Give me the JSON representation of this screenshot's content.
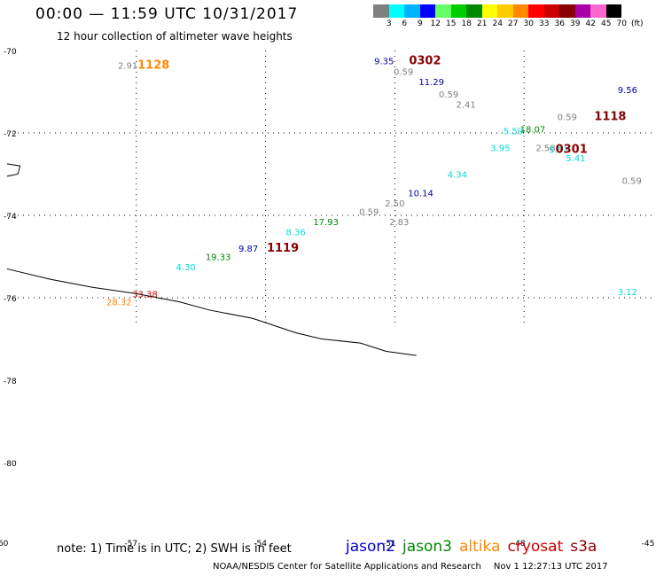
{
  "header": {
    "title": "00:00 — 11:59 UTC 10/31/2017",
    "subtitle": "12 hour collection of altimeter wave heights"
  },
  "scale": {
    "unit": "(ft)",
    "steps": [
      {
        "label": "3",
        "color": "#808080"
      },
      {
        "label": "6",
        "color": "#00ffff"
      },
      {
        "label": "9",
        "color": "#00b4ff"
      },
      {
        "label": "12",
        "color": "#0000ff"
      },
      {
        "label": "15",
        "color": "#66ff66"
      },
      {
        "label": "18",
        "color": "#00cc00"
      },
      {
        "label": "21",
        "color": "#008800"
      },
      {
        "label": "24",
        "color": "#ffff00"
      },
      {
        "label": "27",
        "color": "#ffcc00"
      },
      {
        "label": "30",
        "color": "#ff8800"
      },
      {
        "label": "33",
        "color": "#ff0000"
      },
      {
        "label": "36",
        "color": "#cc0000"
      },
      {
        "label": "39",
        "color": "#880000"
      },
      {
        "label": "42",
        "color": "#aa00aa"
      },
      {
        "label": "45",
        "color": "#ff66cc"
      },
      {
        "label": "70",
        "color": "#000000"
      }
    ]
  },
  "axes": {
    "lat_labels": [
      {
        "text": "-70",
        "lat": -70
      },
      {
        "text": "-72",
        "lat": -72
      },
      {
        "text": "-74",
        "lat": -74
      },
      {
        "text": "-76",
        "lat": -76
      },
      {
        "text": "-78",
        "lat": -78
      },
      {
        "text": "-80",
        "lat": -80
      }
    ],
    "lon_labels": [
      {
        "text": "-60",
        "lon": -60
      },
      {
        "text": "-57",
        "lon": -57
      },
      {
        "text": "-54",
        "lon": -54
      },
      {
        "text": "-51",
        "lon": -51
      },
      {
        "text": "-48",
        "lon": -48
      },
      {
        "text": "-45",
        "lon": -45
      }
    ],
    "grid_lons": [
      -57,
      -54,
      -51,
      -48
    ],
    "grid_lats": [
      -72,
      -74,
      -76
    ]
  },
  "observations": [
    {
      "text": "2.91",
      "lon": -57.2,
      "lat": -70.35,
      "color": "#808080"
    },
    {
      "text": "1128",
      "lon": -56.6,
      "lat": -70.35,
      "color": "#ff8800",
      "kind": "time"
    },
    {
      "text": "9.35",
      "lon": -51.25,
      "lat": -70.25,
      "color": "#0000aa"
    },
    {
      "text": "0302",
      "lon": -50.3,
      "lat": -70.25,
      "color": "#880000",
      "kind": "time"
    },
    {
      "text": "0.59",
      "lon": -50.8,
      "lat": -70.5,
      "color": "#808080"
    },
    {
      "text": "11.29",
      "lon": -50.15,
      "lat": -70.75,
      "color": "#0000aa"
    },
    {
      "text": "0.59",
      "lon": -49.75,
      "lat": -71.05,
      "color": "#808080"
    },
    {
      "text": "2.41",
      "lon": -49.35,
      "lat": -71.3,
      "color": "#808080"
    },
    {
      "text": "9.56",
      "lon": -45.6,
      "lat": -70.95,
      "color": "#0000aa"
    },
    {
      "text": "0.59",
      "lon": -47.0,
      "lat": -71.6,
      "color": "#808080"
    },
    {
      "text": "1118",
      "lon": -46.0,
      "lat": -71.6,
      "color": "#880000",
      "kind": "time"
    },
    {
      "text": "5.59",
      "lon": -48.25,
      "lat": -71.95,
      "color": "#00dddd"
    },
    {
      "text": "18.07",
      "lon": -47.8,
      "lat": -71.9,
      "color": "#008800"
    },
    {
      "text": "3.95",
      "lon": -48.55,
      "lat": -72.35,
      "color": "#00dddd"
    },
    {
      "text": "2.58",
      "lon": -47.5,
      "lat": -72.35,
      "color": "#808080"
    },
    {
      "text": "5.53",
      "lon": -47.2,
      "lat": -72.4,
      "color": "#00dddd"
    },
    {
      "text": "0301",
      "lon": -46.9,
      "lat": -72.4,
      "color": "#880000",
      "kind": "time"
    },
    {
      "text": "5.41",
      "lon": -46.8,
      "lat": -72.6,
      "color": "#00dddd"
    },
    {
      "text": "0.59",
      "lon": -45.5,
      "lat": -73.15,
      "color": "#808080"
    },
    {
      "text": "4.34",
      "lon": -49.55,
      "lat": -73.0,
      "color": "#00dddd"
    },
    {
      "text": "10.14",
      "lon": -50.4,
      "lat": -73.45,
      "color": "#0000aa"
    },
    {
      "text": "2.50",
      "lon": -51.0,
      "lat": -73.7,
      "color": "#808080"
    },
    {
      "text": "0.59",
      "lon": -51.6,
      "lat": -73.9,
      "color": "#808080"
    },
    {
      "text": "17.93",
      "lon": -52.6,
      "lat": -74.15,
      "color": "#008800"
    },
    {
      "text": "2.83",
      "lon": -50.9,
      "lat": -74.15,
      "color": "#808080"
    },
    {
      "text": "8.36",
      "lon": -53.3,
      "lat": -74.4,
      "color": "#00dddd"
    },
    {
      "text": "9.87",
      "lon": -54.4,
      "lat": -74.8,
      "color": "#0000aa"
    },
    {
      "text": "1119",
      "lon": -53.6,
      "lat": -74.8,
      "color": "#880000",
      "kind": "time"
    },
    {
      "text": "19.33",
      "lon": -55.1,
      "lat": -75.0,
      "color": "#008800"
    },
    {
      "text": "4.30",
      "lon": -55.85,
      "lat": -75.25,
      "color": "#00dddd"
    },
    {
      "text": "33.38",
      "lon": -56.8,
      "lat": -75.9,
      "color": "#cc0000"
    },
    {
      "text": "28.32",
      "lon": -57.4,
      "lat": -76.1,
      "color": "#ff8800"
    },
    {
      "text": "3.12",
      "lon": -45.6,
      "lat": -75.85,
      "color": "#00dddd"
    }
  ],
  "coastline": [
    [
      -60.0,
      -75.3
    ],
    [
      -59.0,
      -75.55
    ],
    [
      -58.0,
      -75.75
    ],
    [
      -57.0,
      -75.9
    ],
    [
      -56.0,
      -76.1
    ],
    [
      -55.3,
      -76.3
    ],
    [
      -54.3,
      -76.5
    ],
    [
      -53.3,
      -76.85
    ],
    [
      -52.7,
      -77.0
    ],
    [
      -51.8,
      -77.1
    ],
    [
      -51.2,
      -77.3
    ],
    [
      -50.5,
      -77.4
    ]
  ],
  "coast_fragment": [
    [
      -60.0,
      -72.75
    ],
    [
      -59.7,
      -72.8
    ],
    [
      -59.75,
      -73.0
    ],
    [
      -60.0,
      -73.05
    ]
  ],
  "footer": {
    "note": "note: 1) Time is in UTC; 2) SWH is in feet",
    "legend": [
      {
        "name": "jason2",
        "color": "#0000cc"
      },
      {
        "name": "jason3",
        "color": "#008800"
      },
      {
        "name": "altika",
        "color": "#ff8800"
      },
      {
        "name": "cryosat",
        "color": "#cc0000"
      },
      {
        "name": "s3a",
        "color": "#880000"
      }
    ],
    "credit": "NOAA/NESDIS Center for Satellite Applications and Research",
    "timestamp": "Nov  1 12:27:13 UTC 2017"
  }
}
